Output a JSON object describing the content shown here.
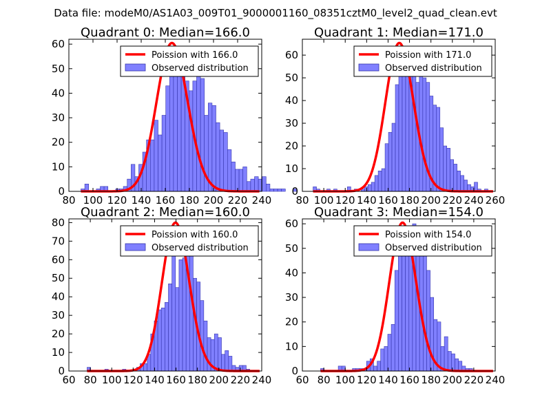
{
  "figure": {
    "suptitle": "Data file: modeM0/AS1A03_009T01_9000001160_08351cztM0_level2_quad_clean.evt"
  },
  "colors": {
    "hist_fill": "#8080ff",
    "hist_edge": "#3333aa",
    "curve": "#ff0000",
    "axes": "#000000"
  },
  "chart_data": [
    {
      "type": "bar",
      "title": "Quadrant 0: Median=166.0",
      "median": 166.0,
      "xlim": [
        80,
        240
      ],
      "ylim": [
        0,
        62
      ],
      "xticks": [
        80,
        100,
        120,
        140,
        160,
        180,
        200,
        220,
        240
      ],
      "yticks": [
        0,
        10,
        20,
        30,
        40,
        50,
        60
      ],
      "legend": {
        "position": "top-right",
        "curve_label": "Poission with 166.0",
        "hist_label": "Observed distribution"
      },
      "bin_width": 3.2,
      "bin_start": 90,
      "counts": [
        1,
        3,
        0,
        0,
        1,
        2,
        2,
        0,
        0,
        1,
        1,
        2,
        5,
        11,
        6,
        11,
        16,
        21,
        21,
        29,
        23,
        31,
        43,
        49,
        58,
        50,
        58,
        45,
        41,
        45,
        55,
        46,
        31,
        36,
        35,
        28,
        25,
        24,
        17,
        12,
        9,
        9,
        10,
        4,
        5,
        6,
        5,
        6,
        3,
        1,
        1,
        1,
        1,
        0,
        0,
        1
      ]
    },
    {
      "type": "bar",
      "title": "Quadrant 1: Median=171.0",
      "median": 171.0,
      "xlim": [
        80,
        260
      ],
      "ylim": [
        0,
        67
      ],
      "xticks": [
        80,
        100,
        120,
        140,
        160,
        180,
        200,
        220,
        240,
        260
      ],
      "yticks": [
        0,
        10,
        20,
        30,
        40,
        50,
        60
      ],
      "legend": {
        "position": "top-right",
        "curve_label": "Poission with 171.0",
        "hist_label": "Observed distribution"
      },
      "bin_width": 3.2,
      "bin_start": 90,
      "counts": [
        2,
        1,
        0,
        0,
        1,
        0,
        1,
        0,
        0,
        0,
        2,
        0,
        1,
        0,
        1,
        2,
        3,
        4,
        7,
        9,
        10,
        21,
        26,
        30,
        47,
        52,
        58,
        61,
        57,
        55,
        48,
        56,
        50,
        48,
        42,
        38,
        37,
        28,
        20,
        19,
        14,
        12,
        9,
        7,
        5,
        3,
        2,
        4,
        1,
        0,
        1,
        0,
        0,
        0
      ]
    },
    {
      "type": "bar",
      "title": "Quadrant 2: Median=160.0",
      "median": 160.0,
      "xlim": [
        60,
        240
      ],
      "ylim": [
        0,
        82
      ],
      "xticks": [
        60,
        80,
        100,
        120,
        140,
        160,
        180,
        200,
        220,
        240
      ],
      "yticks": [
        0,
        10,
        20,
        30,
        40,
        50,
        60,
        70,
        80
      ],
      "legend": {
        "position": "top-right",
        "curve_label": "Poission with 160.0",
        "hist_label": "Observed distribution"
      },
      "bin_width": 3.3,
      "bin_start": 77,
      "counts": [
        2,
        0,
        0,
        0,
        0,
        1,
        0,
        0,
        0,
        0,
        1,
        0,
        0,
        1,
        2,
        4,
        4,
        9,
        20,
        27,
        33,
        34,
        37,
        47,
        63,
        45,
        60,
        61,
        76,
        72,
        50,
        48,
        38,
        27,
        18,
        17,
        20,
        18,
        9,
        11,
        8,
        3,
        2,
        3,
        3,
        1,
        0,
        0
      ]
    },
    {
      "type": "bar",
      "title": "Quadrant 3: Median=154.0",
      "median": 154.0,
      "xlim": [
        60,
        240
      ],
      "ylim": [
        0,
        62
      ],
      "xticks": [
        60,
        80,
        100,
        120,
        140,
        160,
        180,
        200,
        220,
        240
      ],
      "yticks": [
        0,
        10,
        20,
        30,
        40,
        50,
        60
      ],
      "legend": {
        "position": "top-right",
        "curve_label": "Poission with 154.0",
        "hist_label": "Observed distribution"
      },
      "bin_width": 3.3,
      "bin_start": 77,
      "counts": [
        1,
        0,
        0,
        0,
        0,
        2,
        2,
        0,
        0,
        1,
        1,
        1,
        1,
        4,
        5,
        2,
        4,
        9,
        10,
        15,
        19,
        41,
        53,
        57,
        58,
        52,
        60,
        48,
        50,
        58,
        41,
        30,
        21,
        20,
        10,
        14,
        8,
        7,
        5,
        4,
        2,
        1,
        1,
        0,
        0,
        0,
        0,
        0
      ]
    }
  ]
}
